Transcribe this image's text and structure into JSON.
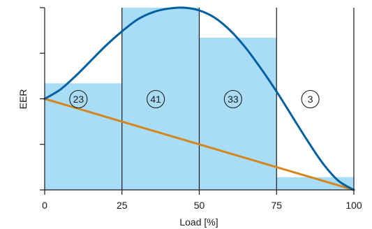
{
  "chart_data": {
    "type": "bar",
    "xlabel": "Load [%]",
    "ylabel": "EER",
    "x_ticks": [
      "0",
      "25",
      "50",
      "75",
      "100"
    ],
    "xlim": [
      0,
      100
    ],
    "ylim": [
      0,
      1
    ],
    "grid": false,
    "bins": [
      {
        "x_start": 0,
        "x_end": 25,
        "height": 0.585,
        "label": "23"
      },
      {
        "x_start": 25,
        "x_end": 50,
        "height": 1.0,
        "label": "41"
      },
      {
        "x_start": 50,
        "x_end": 75,
        "height": 0.835,
        "label": "33"
      },
      {
        "x_start": 75,
        "x_end": 100,
        "height": 0.07,
        "label": "3"
      }
    ],
    "curve": {
      "color": "#0060a0",
      "x": [
        0,
        5,
        10,
        15,
        20,
        25,
        30,
        35,
        40,
        45,
        50,
        55,
        60,
        65,
        70,
        75,
        80,
        85,
        90,
        95,
        100
      ],
      "y": [
        0.5,
        0.55,
        0.625,
        0.71,
        0.795,
        0.87,
        0.935,
        0.975,
        0.995,
        1.0,
        0.985,
        0.945,
        0.875,
        0.78,
        0.665,
        0.54,
        0.405,
        0.27,
        0.145,
        0.05,
        0.0
      ]
    },
    "line": {
      "color": "#d4861f",
      "x": [
        0,
        100
      ],
      "y": [
        0.5,
        0.0
      ]
    },
    "bar_color": "#a8dcf7"
  }
}
